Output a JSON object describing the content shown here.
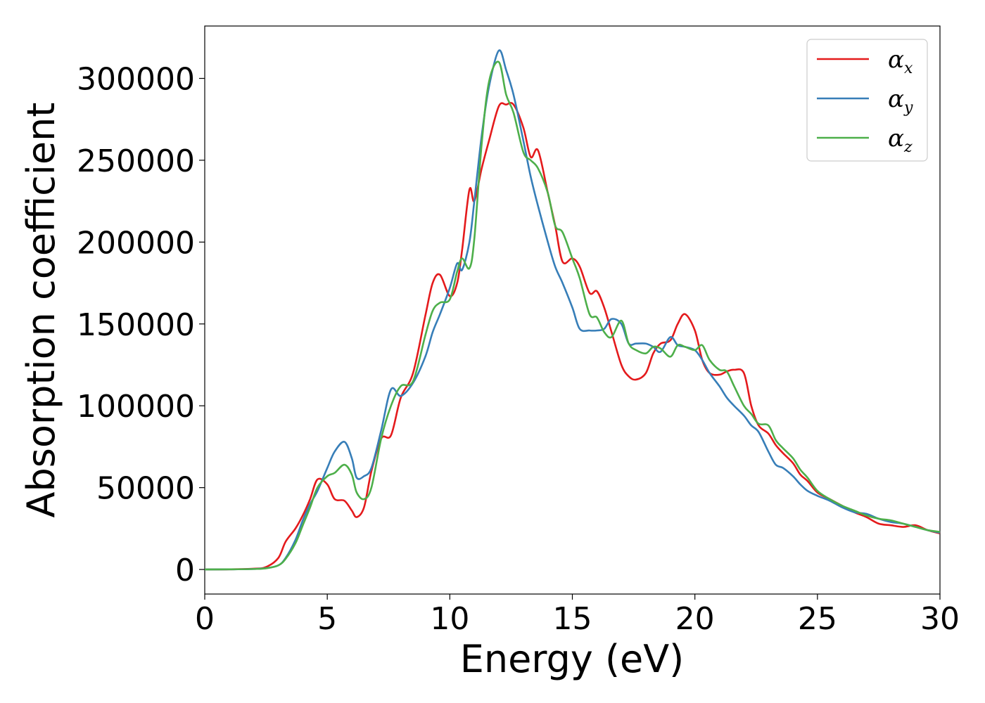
{
  "chart_data": {
    "type": "line",
    "title": "",
    "xlabel": "Energy (eV)",
    "ylabel": "Absorption coefficient",
    "xlim": [
      0,
      30
    ],
    "ylim": [
      -15000,
      332000
    ],
    "xticks": [
      0,
      5,
      10,
      15,
      20,
      25,
      30
    ],
    "xtick_labels": [
      "0",
      "5",
      "10",
      "15",
      "20",
      "25",
      "30"
    ],
    "yticks": [
      0,
      50000,
      100000,
      150000,
      200000,
      250000,
      300000
    ],
    "ytick_labels": [
      "0",
      "50000",
      "100000",
      "150000",
      "200000",
      "250000",
      "300000"
    ],
    "grid": false,
    "legend_position": "top-right",
    "series": [
      {
        "name": "αx",
        "symbol": "α",
        "subscript": "x",
        "color": "#e41a1c",
        "x": [
          0,
          1,
          2,
          2.5,
          3,
          3.3,
          3.7,
          4,
          4.3,
          4.6,
          5,
          5.3,
          5.7,
          6,
          6.2,
          6.5,
          6.8,
          7.2,
          7.6,
          8,
          8.5,
          9,
          9.3,
          9.6,
          10,
          10.3,
          10.5,
          10.8,
          11,
          11.3,
          11.6,
          12,
          12.3,
          12.6,
          13,
          13.3,
          13.6,
          14,
          14.3,
          14.6,
          15,
          15.3,
          15.7,
          16,
          16.3,
          16.6,
          17,
          17.3,
          17.6,
          18,
          18.3,
          18.6,
          19,
          19.3,
          19.6,
          20,
          20.3,
          20.6,
          21,
          21.3,
          21.6,
          22,
          22.3,
          22.6,
          23,
          23.3,
          23.6,
          24,
          24.3,
          24.6,
          25,
          25.5,
          26,
          26.5,
          27,
          27.5,
          28,
          28.5,
          29,
          29.5,
          30
        ],
        "y": [
          0,
          100,
          500,
          1500,
          7000,
          17000,
          25000,
          33000,
          43000,
          55000,
          52000,
          43000,
          42000,
          36000,
          32000,
          38000,
          60000,
          80000,
          82000,
          105000,
          120000,
          155000,
          175000,
          180000,
          167000,
          175000,
          195000,
          232000,
          225000,
          245000,
          262000,
          283000,
          284000,
          284000,
          270000,
          252000,
          256000,
          230000,
          210000,
          188000,
          190000,
          185000,
          169000,
          170000,
          160000,
          145000,
          125000,
          118000,
          116000,
          120000,
          132000,
          138000,
          140000,
          150000,
          156000,
          146000,
          128000,
          120000,
          119000,
          121000,
          122000,
          120000,
          100000,
          88000,
          83000,
          76000,
          71000,
          65000,
          58000,
          54000,
          47000,
          43000,
          39000,
          35000,
          32000,
          28000,
          27000,
          26000,
          27000,
          24000,
          22000
        ]
      },
      {
        "name": "αy",
        "symbol": "α",
        "subscript": "y",
        "color": "#377eb8",
        "x": [
          0,
          1,
          2,
          2.5,
          3,
          3.3,
          3.7,
          4,
          4.3,
          4.6,
          5,
          5.3,
          5.7,
          6,
          6.2,
          6.5,
          6.8,
          7.2,
          7.6,
          8,
          8.5,
          9,
          9.3,
          9.6,
          10,
          10.3,
          10.5,
          10.8,
          11,
          11.3,
          11.6,
          12,
          12.3,
          12.6,
          13,
          13.3,
          13.6,
          14,
          14.3,
          14.6,
          15,
          15.3,
          15.7,
          16,
          16.3,
          16.6,
          17,
          17.3,
          17.6,
          18,
          18.3,
          18.6,
          19,
          19.3,
          19.6,
          20,
          20.3,
          20.6,
          21,
          21.3,
          21.6,
          22,
          22.3,
          22.6,
          23,
          23.3,
          23.6,
          24,
          24.3,
          24.6,
          25,
          25.5,
          26,
          26.5,
          27,
          27.5,
          28,
          28.5,
          29,
          29.5,
          30
        ],
        "y": [
          0,
          100,
          300,
          800,
          2500,
          7000,
          18000,
          30000,
          40000,
          48000,
          62000,
          72000,
          78000,
          68000,
          56000,
          57000,
          62000,
          85000,
          110000,
          106000,
          114000,
          130000,
          145000,
          156000,
          172000,
          187000,
          183000,
          200000,
          225000,
          265000,
          295000,
          317000,
          305000,
          290000,
          262000,
          240000,
          222000,
          200000,
          185000,
          175000,
          160000,
          147000,
          146000,
          146000,
          147000,
          153000,
          150000,
          138000,
          138000,
          138000,
          136000,
          133000,
          142000,
          137000,
          136000,
          134000,
          128000,
          120000,
          112000,
          105000,
          100000,
          94000,
          88000,
          84000,
          72000,
          64000,
          62000,
          57000,
          52000,
          48000,
          45000,
          42000,
          38000,
          35000,
          34000,
          31000,
          29000,
          28000,
          26000,
          24000,
          22500
        ]
      },
      {
        "name": "αz",
        "symbol": "α",
        "subscript": "z",
        "color": "#4daf4a",
        "x": [
          0,
          1,
          2,
          2.5,
          3,
          3.3,
          3.7,
          4,
          4.3,
          4.6,
          5,
          5.3,
          5.7,
          6,
          6.2,
          6.5,
          6.8,
          7.2,
          7.6,
          8,
          8.5,
          9,
          9.3,
          9.6,
          10,
          10.3,
          10.5,
          10.8,
          11,
          11.3,
          11.6,
          12,
          12.3,
          12.6,
          13,
          13.3,
          13.6,
          14,
          14.3,
          14.6,
          15,
          15.3,
          15.7,
          16,
          16.3,
          16.6,
          17,
          17.3,
          17.6,
          18,
          18.3,
          18.6,
          19,
          19.3,
          19.6,
          20,
          20.3,
          20.6,
          21,
          21.3,
          21.6,
          22,
          22.3,
          22.6,
          23,
          23.3,
          23.6,
          24,
          24.3,
          24.6,
          25,
          25.5,
          26,
          26.5,
          27,
          27.5,
          28,
          28.5,
          29,
          29.5,
          30
        ],
        "y": [
          0,
          100,
          300,
          700,
          2500,
          6500,
          16000,
          27000,
          38000,
          50000,
          57000,
          59000,
          64000,
          58000,
          47000,
          43000,
          50000,
          80000,
          100000,
          112000,
          115000,
          143000,
          158000,
          163000,
          165000,
          182000,
          190000,
          184000,
          202000,
          260000,
          298000,
          310000,
          290000,
          279000,
          255000,
          250000,
          245000,
          230000,
          210000,
          206000,
          190000,
          178000,
          156000,
          154000,
          145000,
          142000,
          152000,
          138000,
          134000,
          132000,
          136000,
          135000,
          130000,
          137000,
          136000,
          134000,
          137000,
          128000,
          122000,
          121000,
          112000,
          100000,
          95000,
          89000,
          88000,
          79000,
          74000,
          68000,
          61000,
          56000,
          48000,
          43000,
          39000,
          36000,
          33000,
          31000,
          30000,
          28000,
          26000,
          24000,
          23000
        ]
      }
    ]
  }
}
